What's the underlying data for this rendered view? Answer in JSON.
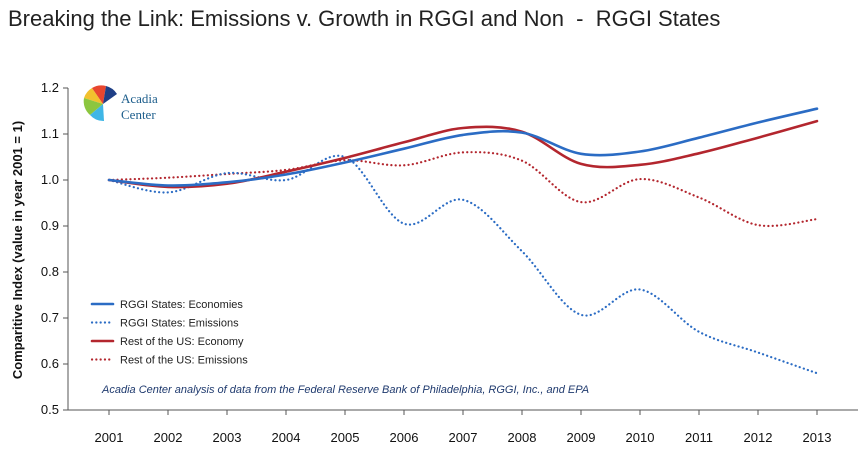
{
  "page": {
    "title": "Breaking the Link: Emissions v. Growth in RGGI and Non  -  RGGI States",
    "logo": {
      "line1": "Acadia",
      "line2": "Center"
    },
    "note": "Acadia Center analysis of data from the Federal Reserve Bank of Philadelphia, RGGI, Inc., and EPA"
  },
  "chart_data": {
    "type": "line",
    "title": "Breaking the Link: Emissions v. Growth in RGGI and Non  -  RGGI States",
    "xlabel": "",
    "ylabel": "Comparitive Index (value in year 2001 = 1)",
    "x": [
      "2001",
      "2002",
      "2003",
      "2004",
      "2005",
      "2006",
      "2007",
      "2008",
      "2009",
      "2010",
      "2011",
      "2012",
      "2013"
    ],
    "ylim": [
      0.5,
      1.2
    ],
    "yticks": [
      "0.5",
      "0.6",
      "0.7",
      "0.8",
      "0.9",
      "1.0",
      "1.1",
      "1.2"
    ],
    "grid": false,
    "legend_position": "bottom-left",
    "series": [
      {
        "name": "RGGI States: Economies",
        "style": "solid",
        "color": "#2b6cc4",
        "values": [
          1.0,
          0.988,
          0.995,
          1.012,
          1.038,
          1.068,
          1.098,
          1.103,
          1.057,
          1.062,
          1.092,
          1.125,
          1.155
        ]
      },
      {
        "name": "RGGI States: Emissions",
        "style": "dotted",
        "color": "#2b6cc4",
        "values": [
          1.0,
          0.973,
          1.015,
          1.0,
          1.05,
          0.905,
          0.957,
          0.845,
          0.707,
          0.762,
          0.67,
          0.625,
          0.58
        ]
      },
      {
        "name": "Rest of the US: Economy",
        "style": "solid",
        "color": "#b3262e",
        "values": [
          1.0,
          0.985,
          0.992,
          1.018,
          1.048,
          1.082,
          1.113,
          1.105,
          1.035,
          1.033,
          1.058,
          1.092,
          1.128
        ]
      },
      {
        "name": "Rest of the US: Emissions",
        "style": "dotted",
        "color": "#b3262e",
        "values": [
          1.0,
          1.005,
          1.013,
          1.022,
          1.043,
          1.032,
          1.06,
          1.042,
          0.952,
          1.002,
          0.962,
          0.902,
          0.915
        ]
      }
    ]
  }
}
